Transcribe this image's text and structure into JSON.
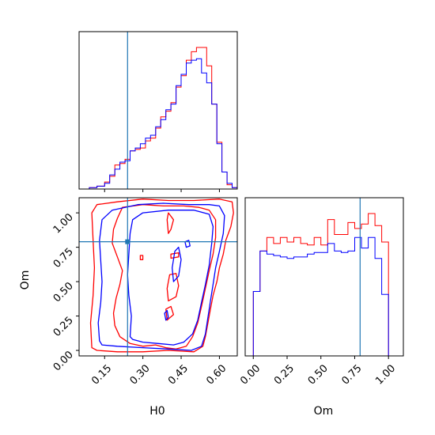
{
  "colors": {
    "series_a": "#ff0000",
    "series_b": "#0000ff",
    "truth": "#1f77b4",
    "axes": "#000000",
    "background": "#ffffff"
  },
  "chart_data": [
    {
      "panel": "H0 marginal histogram",
      "type": "histogram",
      "xlim": [
        0.05,
        0.67
      ],
      "truth": 0.24,
      "xticks": [
        0.15,
        0.3,
        0.45,
        0.6
      ],
      "xtick_labels": [],
      "bin_edges": [
        0.09,
        0.12,
        0.15,
        0.17,
        0.19,
        0.21,
        0.23,
        0.25,
        0.27,
        0.29,
        0.31,
        0.33,
        0.35,
        0.37,
        0.39,
        0.41,
        0.43,
        0.45,
        0.47,
        0.49,
        0.51,
        0.53,
        0.55,
        0.57,
        0.59,
        0.61,
        0.63,
        0.65,
        0.67
      ],
      "series": [
        {
          "color": "red",
          "values": [
            0.01,
            0.02,
            0.05,
            0.09,
            0.17,
            0.18,
            0.21,
            0.27,
            0.28,
            0.29,
            0.34,
            0.36,
            0.43,
            0.51,
            0.55,
            0.61,
            0.72,
            0.8,
            0.91,
            0.97,
            1.0,
            1.0,
            0.87,
            0.6,
            0.33,
            0.12,
            0.03,
            0.01
          ]
        },
        {
          "color": "blue",
          "values": [
            0.01,
            0.02,
            0.04,
            0.1,
            0.14,
            0.19,
            0.2,
            0.27,
            0.29,
            0.32,
            0.36,
            0.38,
            0.44,
            0.49,
            0.56,
            0.6,
            0.73,
            0.81,
            0.89,
            0.91,
            0.92,
            0.82,
            0.75,
            0.6,
            0.32,
            0.12,
            0.04,
            0.01
          ]
        }
      ]
    },
    {
      "panel": "H0 vs Om contours",
      "type": "contour",
      "xlabel": "H0",
      "ylabel": "Om",
      "xlim": [
        0.05,
        0.67
      ],
      "ylim": [
        -0.04,
        1.11
      ],
      "xticks": [
        0.15,
        0.3,
        0.45,
        0.6
      ],
      "xtick_labels": [
        "0.15",
        "0.30",
        "0.45",
        "0.60"
      ],
      "yticks": [
        0.0,
        0.25,
        0.5,
        0.75,
        1.0
      ],
      "ytick_labels": [
        "0.00",
        "0.25",
        "0.50",
        "0.75",
        "1.00"
      ],
      "truth": {
        "x": 0.24,
        "y": 0.79
      },
      "series": [
        {
          "color": "red",
          "contours": [
            [
              [
                0.19,
                0.18
              ],
              [
                0.185,
                0.27
              ],
              [
                0.195,
                0.38
              ],
              [
                0.21,
                0.48
              ],
              [
                0.22,
                0.58
              ],
              [
                0.2,
                0.68
              ],
              [
                0.18,
                0.78
              ],
              [
                0.185,
                0.88
              ],
              [
                0.2,
                0.96
              ],
              [
                0.22,
                1.04
              ],
              [
                0.3,
                1.06
              ],
              [
                0.38,
                1.05
              ],
              [
                0.46,
                1.05
              ],
              [
                0.52,
                1.04
              ],
              [
                0.56,
                1.02
              ],
              [
                0.585,
                0.95
              ],
              [
                0.585,
                0.82
              ],
              [
                0.575,
                0.7
              ],
              [
                0.56,
                0.58
              ],
              [
                0.545,
                0.45
              ],
              [
                0.53,
                0.32
              ],
              [
                0.515,
                0.2
              ],
              [
                0.495,
                0.1
              ],
              [
                0.47,
                0.03
              ],
              [
                0.43,
                0.01
              ],
              [
                0.39,
                0.02
              ],
              [
                0.35,
                0.04
              ],
              [
                0.3,
                0.03
              ],
              [
                0.25,
                0.05
              ],
              [
                0.21,
                0.1
              ],
              [
                0.19,
                0.18
              ]
            ],
            [
              [
                0.1,
                0.02
              ],
              [
                0.095,
                0.2
              ],
              [
                0.105,
                0.4
              ],
              [
                0.11,
                0.6
              ],
              [
                0.105,
                0.8
              ],
              [
                0.1,
                1.0
              ],
              [
                0.12,
                1.06
              ],
              [
                0.2,
                1.08
              ],
              [
                0.3,
                1.1
              ],
              [
                0.4,
                1.09
              ],
              [
                0.5,
                1.09
              ],
              [
                0.6,
                1.1
              ],
              [
                0.65,
                1.08
              ],
              [
                0.655,
                1.0
              ],
              [
                0.645,
                0.9
              ],
              [
                0.625,
                0.8
              ],
              [
                0.615,
                0.7
              ],
              [
                0.6,
                0.6
              ],
              [
                0.59,
                0.5
              ],
              [
                0.575,
                0.4
              ],
              [
                0.565,
                0.3
              ],
              [
                0.555,
                0.2
              ],
              [
                0.545,
                0.1
              ],
              [
                0.535,
                0.03
              ],
              [
                0.5,
                -0.01
              ],
              [
                0.4,
                0.0
              ],
              [
                0.3,
                -0.01
              ],
              [
                0.2,
                -0.01
              ],
              [
                0.12,
                0.0
              ],
              [
                0.1,
                0.02
              ]
            ],
            [
              [
                0.4,
                0.36
              ],
              [
                0.395,
                0.45
              ],
              [
                0.405,
                0.55
              ],
              [
                0.43,
                0.56
              ],
              [
                0.44,
                0.47
              ],
              [
                0.43,
                0.39
              ],
              [
                0.4,
                0.36
              ]
            ],
            [
              [
                0.395,
                0.22
              ],
              [
                0.39,
                0.3
              ],
              [
                0.41,
                0.32
              ],
              [
                0.42,
                0.26
              ],
              [
                0.395,
                0.22
              ]
            ],
            [
              [
                0.41,
                0.67
              ],
              [
                0.41,
                0.7
              ],
              [
                0.44,
                0.71
              ],
              [
                0.44,
                0.68
              ],
              [
                0.41,
                0.67
              ]
            ],
            [
              [
                0.29,
                0.66
              ],
              [
                0.29,
                0.69
              ],
              [
                0.3,
                0.69
              ],
              [
                0.3,
                0.66
              ],
              [
                0.29,
                0.66
              ]
            ],
            [
              [
                0.4,
                0.85
              ],
              [
                0.395,
                0.95
              ],
              [
                0.4,
                1.0
              ],
              [
                0.42,
                0.95
              ],
              [
                0.41,
                0.88
              ],
              [
                0.4,
                0.85
              ]
            ]
          ]
        },
        {
          "color": "blue",
          "contours": [
            [
              [
                0.25,
                0.1
              ],
              [
                0.255,
                0.25
              ],
              [
                0.245,
                0.4
              ],
              [
                0.24,
                0.55
              ],
              [
                0.245,
                0.7
              ],
              [
                0.25,
                0.85
              ],
              [
                0.26,
                0.95
              ],
              [
                0.3,
                1.0
              ],
              [
                0.4,
                1.02
              ],
              [
                0.5,
                1.02
              ],
              [
                0.56,
                0.99
              ],
              [
                0.575,
                0.9
              ],
              [
                0.57,
                0.78
              ],
              [
                0.56,
                0.62
              ],
              [
                0.545,
                0.48
              ],
              [
                0.53,
                0.35
              ],
              [
                0.515,
                0.22
              ],
              [
                0.495,
                0.12
              ],
              [
                0.46,
                0.06
              ],
              [
                0.42,
                0.04
              ],
              [
                0.36,
                0.05
              ],
              [
                0.3,
                0.06
              ],
              [
                0.26,
                0.08
              ],
              [
                0.25,
                0.1
              ]
            ],
            [
              [
                0.13,
                0.07
              ],
              [
                0.125,
                0.2
              ],
              [
                0.135,
                0.35
              ],
              [
                0.14,
                0.5
              ],
              [
                0.135,
                0.65
              ],
              [
                0.13,
                0.8
              ],
              [
                0.14,
                0.95
              ],
              [
                0.18,
                1.02
              ],
              [
                0.28,
                1.06
              ],
              [
                0.38,
                1.07
              ],
              [
                0.48,
                1.06
              ],
              [
                0.56,
                1.06
              ],
              [
                0.6,
                1.05
              ],
              [
                0.62,
                0.98
              ],
              [
                0.615,
                0.85
              ],
              [
                0.6,
                0.72
              ],
              [
                0.585,
                0.6
              ],
              [
                0.575,
                0.48
              ],
              [
                0.565,
                0.36
              ],
              [
                0.555,
                0.24
              ],
              [
                0.545,
                0.12
              ],
              [
                0.53,
                0.03
              ],
              [
                0.49,
                0.0
              ],
              [
                0.4,
                0.01
              ],
              [
                0.3,
                0.02
              ],
              [
                0.2,
                0.03
              ],
              [
                0.14,
                0.04
              ],
              [
                0.13,
                0.07
              ]
            ],
            [
              [
                0.39,
                0.22
              ],
              [
                0.385,
                0.27
              ],
              [
                0.395,
                0.29
              ],
              [
                0.4,
                0.24
              ],
              [
                0.39,
                0.22
              ]
            ],
            [
              [
                0.42,
                0.5
              ],
              [
                0.415,
                0.6
              ],
              [
                0.425,
                0.72
              ],
              [
                0.44,
                0.75
              ],
              [
                0.45,
                0.66
              ],
              [
                0.44,
                0.54
              ],
              [
                0.42,
                0.5
              ]
            ],
            [
              [
                0.47,
                0.75
              ],
              [
                0.465,
                0.79
              ],
              [
                0.48,
                0.8
              ],
              [
                0.485,
                0.76
              ],
              [
                0.47,
                0.75
              ]
            ]
          ]
        }
      ]
    },
    {
      "panel": "Om marginal histogram",
      "type": "histogram",
      "xlabel": "Om",
      "xlim": [
        -0.06,
        1.11
      ],
      "truth": 0.79,
      "xticks": [
        0.0,
        0.25,
        0.5,
        0.75,
        1.0
      ],
      "xtick_labels": [
        "0.00",
        "0.25",
        "0.50",
        "0.75",
        "1.00"
      ],
      "bin_edges": [
        0.0,
        0.05,
        0.1,
        0.15,
        0.2,
        0.25,
        0.3,
        0.35,
        0.4,
        0.45,
        0.5,
        0.55,
        0.6,
        0.65,
        0.7,
        0.75,
        0.8,
        0.85,
        0.9,
        0.95,
        1.0
      ],
      "series": [
        {
          "color": "red",
          "values": [
            0.43,
            0.7,
            0.79,
            0.75,
            0.79,
            0.76,
            0.79,
            0.75,
            0.74,
            0.79,
            0.74,
            0.91,
            0.81,
            0.81,
            0.89,
            0.85,
            0.88,
            0.95,
            0.87,
            0.76
          ]
        },
        {
          "color": "blue",
          "values": [
            0.43,
            0.7,
            0.68,
            0.67,
            0.66,
            0.65,
            0.66,
            0.66,
            0.68,
            0.69,
            0.69,
            0.75,
            0.7,
            0.69,
            0.7,
            0.79,
            0.72,
            0.79,
            0.65,
            0.41
          ]
        }
      ]
    }
  ]
}
